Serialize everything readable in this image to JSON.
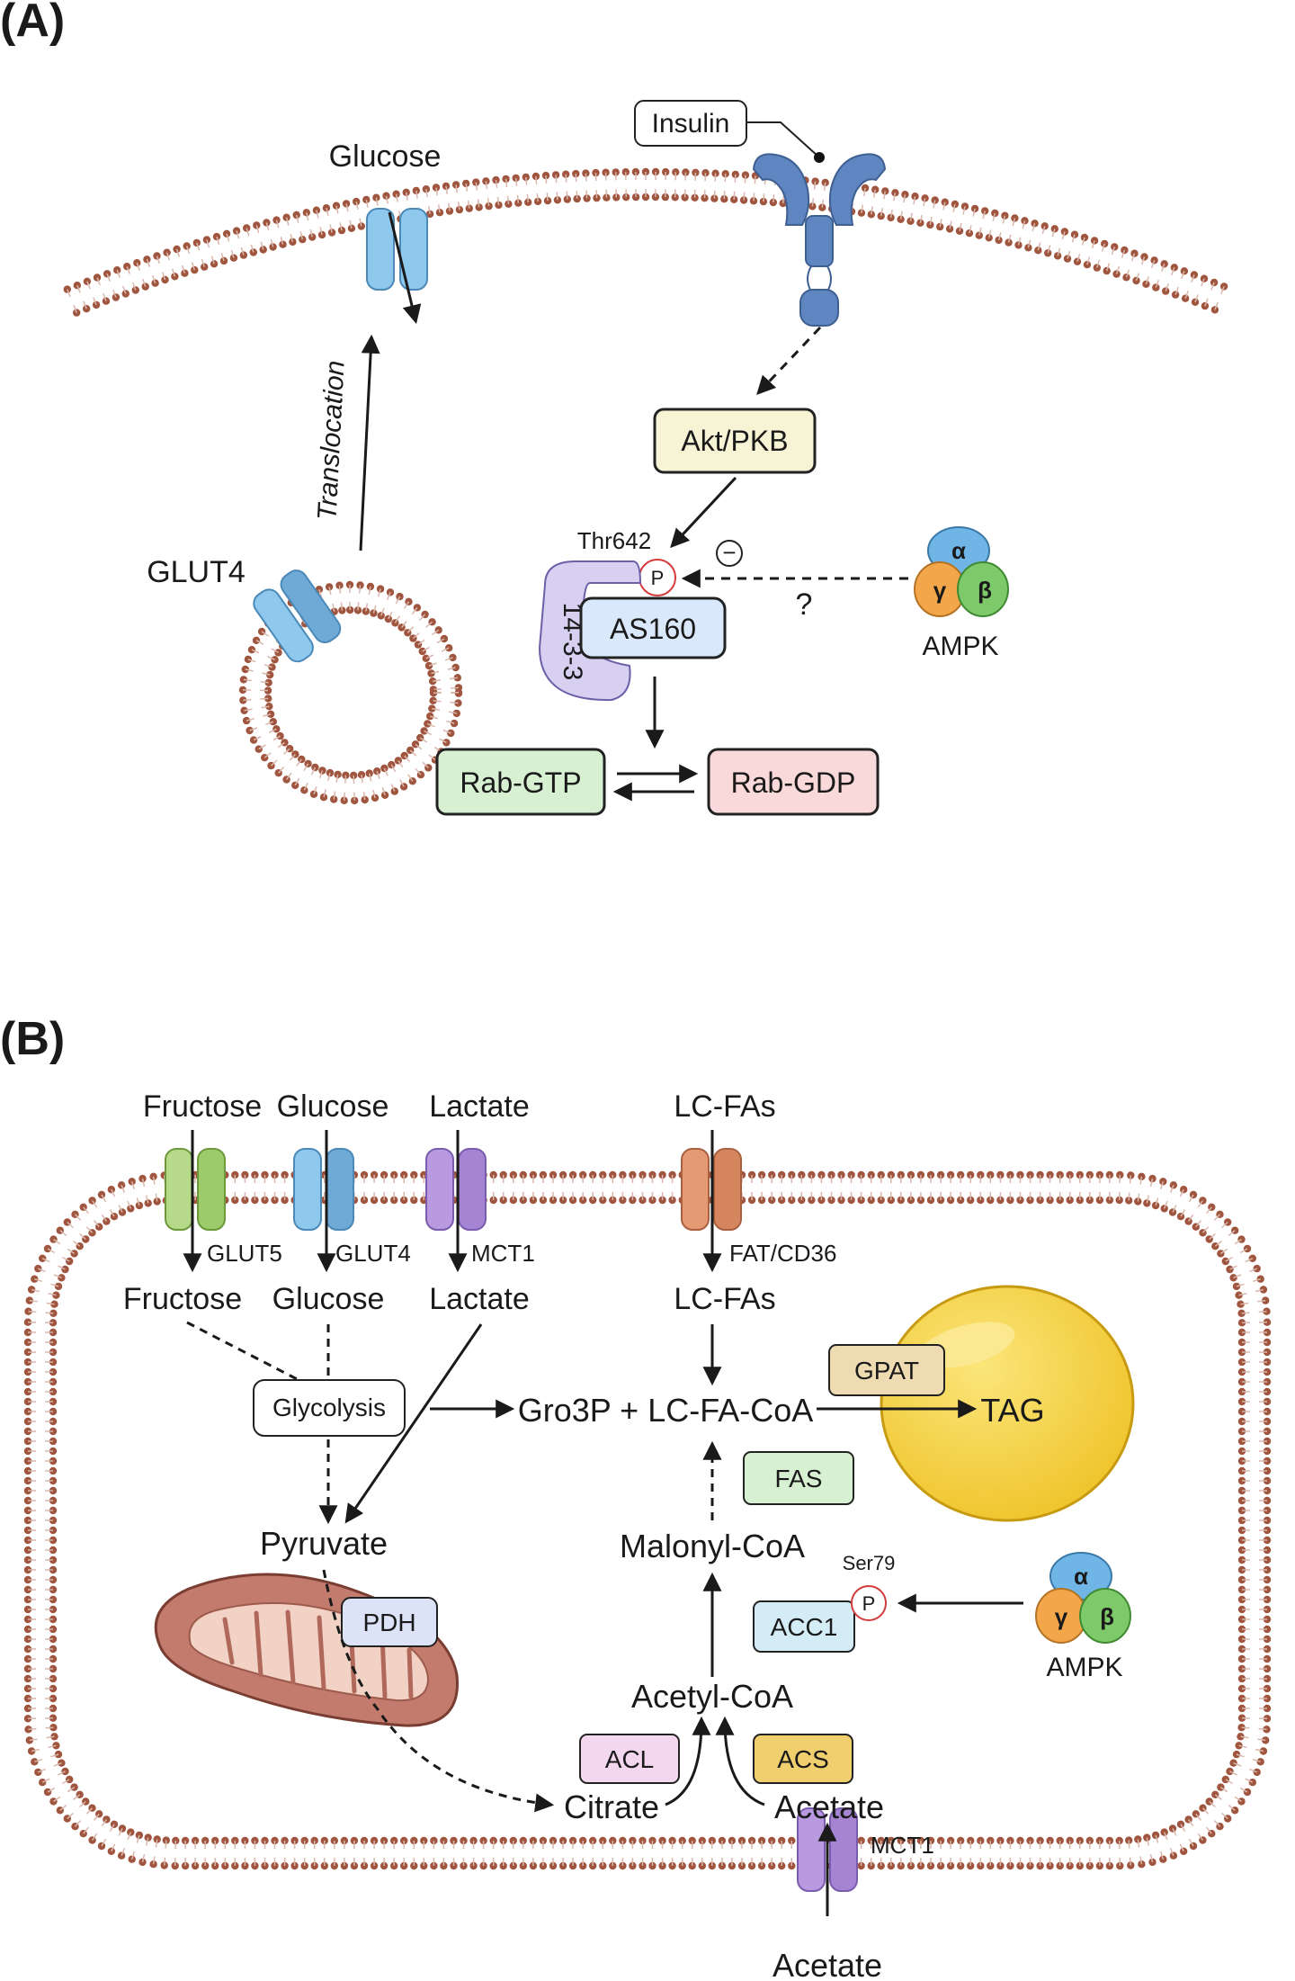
{
  "panels": {
    "a_label": "(A)",
    "b_label": "(B)"
  },
  "panel_a": {
    "glucose": "Glucose",
    "insulin": "Insulin",
    "akt": "Akt/PKB",
    "thr642": "Thr642",
    "p": "P",
    "minus": "−",
    "question": "?",
    "ampk": "AMPK",
    "alpha": "α",
    "beta": "β",
    "gamma": "γ",
    "protein_1433": "14-3-3",
    "as160": "AS160",
    "glut4": "GLUT4",
    "translocation": "Translocation",
    "rab_gtp": "Rab-GTP",
    "rab_gdp": "Rab-GDP"
  },
  "panel_b": {
    "fructose_out": "Fructose",
    "glucose_out": "Glucose",
    "lactate_out": "Lactate",
    "lcfa_out": "LC-FAs",
    "glut5": "GLUT5",
    "glut4": "GLUT4",
    "mct1": "MCT1",
    "fatcd36": "FAT/CD36",
    "fructose_in": "Fructose",
    "glucose_in": "Glucose",
    "lactate_in": "Lactate",
    "lcfa_in": "LC-FAs",
    "glycolysis": "Glycolysis",
    "gro3p": "Gro3P + LC-FA-CoA",
    "gpat": "GPAT",
    "tag": "TAG",
    "fas": "FAS",
    "pyruvate": "Pyruvate",
    "pdh": "PDH",
    "malonyl": "Malonyl-CoA",
    "ser79": "Ser79",
    "p": "P",
    "acc1": "ACC1",
    "ampk": "AMPK",
    "alpha": "α",
    "beta": "β",
    "gamma": "γ",
    "acetylcoa": "Acetyl-CoA",
    "acl": "ACL",
    "acs": "ACS",
    "citrate": "Citrate",
    "acetate_in": "Acetate",
    "mct1_bottom": "MCT1",
    "acetate_out": "Acetate"
  },
  "colors": {
    "membrane": "#a0553f",
    "akt_fill": "#f7f4d6",
    "as160_fill": "#d9e9fb",
    "rab_gtp_fill": "#d7f0d2",
    "rab_gdp_fill": "#f9d9d9",
    "protein_1433_fill": "#d8d0f0",
    "glut4_fill": "#8ec8ec",
    "glut5_fill": "#b6d98a",
    "mct1_fill": "#b99ae0",
    "cd36_fill": "#e69a74",
    "gpat_fill": "#eedbb2",
    "fas_fill": "#d7f0d2",
    "pdh_fill": "#dce3f7",
    "acc1_fill": "#d4ecf6",
    "acl_fill": "#f2d7ee",
    "acs_fill": "#f0cf6e",
    "lipid_droplet": "#f4d23e",
    "mitochondrion": "#c27b6d",
    "insulin_receptor": "#5f86c0"
  },
  "icons": [
    "insulin-receptor-icon",
    "glucose-transporter-icon",
    "vesicle-icon",
    "ampk-complex-icon",
    "lipid-droplet-icon",
    "mitochondrion-icon"
  ]
}
